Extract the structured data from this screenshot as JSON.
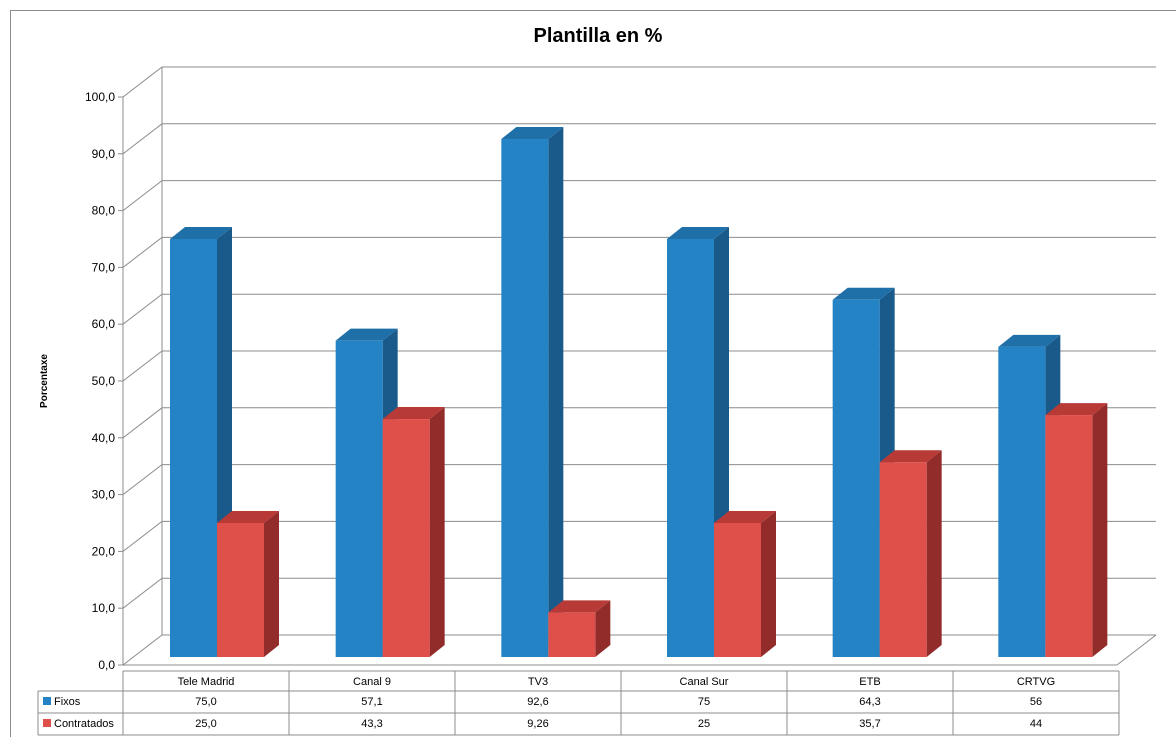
{
  "chart_data": {
    "type": "bar",
    "title": "Plantilla en  %",
    "ylabel": "Porcentaxe",
    "xlabel": "",
    "ylim": [
      0,
      100
    ],
    "ytick_step": 10,
    "yticks": [
      "0,0",
      "10,0",
      "20,0",
      "30,0",
      "40,0",
      "50,0",
      "60,0",
      "70,0",
      "80,0",
      "90,0",
      "100,0"
    ],
    "grid": true,
    "style": "3d-column",
    "legend_placement": "data-table-left",
    "categories": [
      "Tele Madrid",
      "Canal 9",
      "TV3",
      "Canal Sur",
      "ETB",
      "CRTVG"
    ],
    "series": [
      {
        "name": "Fixos",
        "color": "#2483C5",
        "side_color": "#1A5A8A",
        "top_color": "#1F6FA8",
        "values": [
          75.0,
          57.1,
          92.6,
          75,
          64.3,
          56
        ],
        "labels": [
          "75,0",
          "57,1",
          "92,6",
          "75",
          "64,3",
          "56"
        ]
      },
      {
        "name": "Contratados",
        "color": "#E0504B",
        "side_color": "#922C2A",
        "top_color": "#B83A36",
        "values": [
          25.0,
          43.3,
          9.26,
          25,
          35.7,
          44
        ],
        "labels": [
          "25,0",
          "43,3",
          "9,26",
          "25",
          "35,7",
          "44"
        ]
      }
    ]
  }
}
